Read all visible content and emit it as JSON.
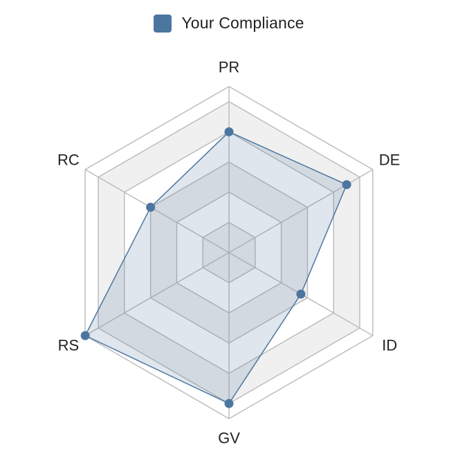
{
  "chart_data": {
    "type": "radar",
    "categories": [
      "PR",
      "DE",
      "ID",
      "GV",
      "RS",
      "RC"
    ],
    "series": [
      {
        "name": "Your Compliance",
        "values": [
          4,
          4.5,
          2.75,
          5,
          5.5,
          3
        ],
        "color": "#4c76a0"
      }
    ],
    "range": [
      0,
      5.5
    ],
    "rings": [
      1,
      2,
      3,
      4,
      5,
      5.5
    ],
    "legend_position": "top-center",
    "grid": true,
    "colors": {
      "series_line": "#4c76a0",
      "series_fill": "rgba(76,118,160,0.18)",
      "grid_line": "#bdbdbd",
      "band_fill": "#f0f0f0"
    }
  },
  "legend": {
    "label": "Your Compliance"
  }
}
